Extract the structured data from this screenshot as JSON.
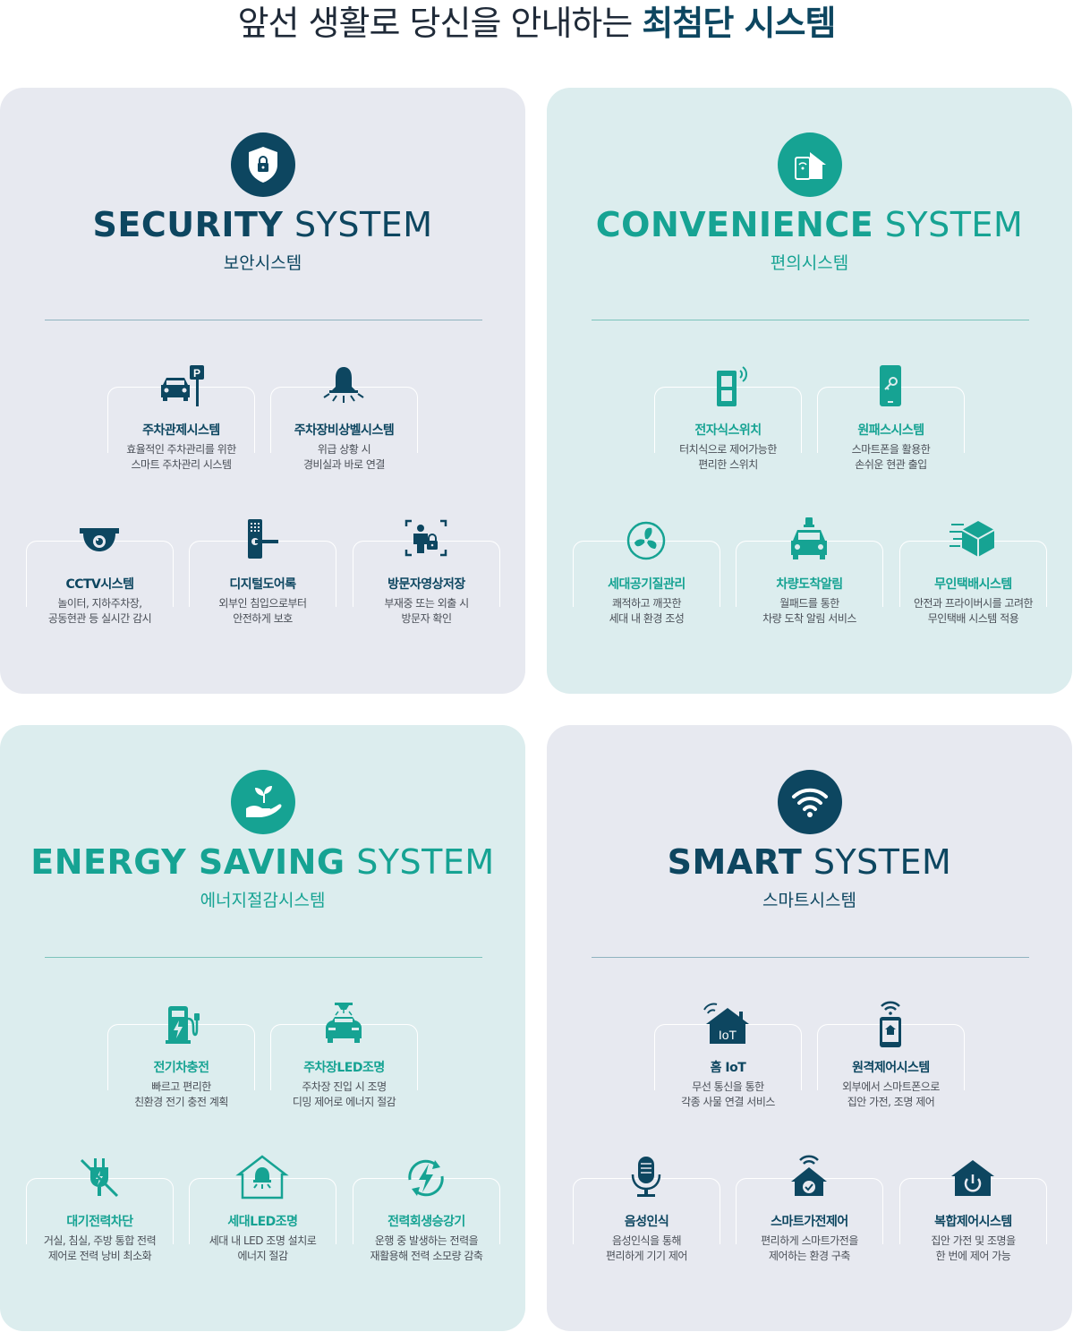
{
  "header": {
    "title_normal": "앞선 생활로 당신을 안내하는",
    "title_strong": "최첨단 시스템"
  },
  "colors": {
    "navy": "#0d4660",
    "teal": "#16a393",
    "gray_panel": "#e7e9f0",
    "mint_panel": "#dcedee"
  },
  "panels": {
    "security": {
      "icon": "shield-lock-icon",
      "title_bold": "SECURITY",
      "title_light": "SYSTEM",
      "subtitle": "보안시스템",
      "features": [
        {
          "icon": "parking-car-icon",
          "name": "주차관제시스템",
          "desc1": "효율적인 주차관리를 위한",
          "desc2": "스마트 주차관리 시스템"
        },
        {
          "icon": "alarm-bell-icon",
          "name": "주차장비상벨시스템",
          "desc1": "위급 상황 시",
          "desc2": "경비실과 바로 연결"
        },
        {
          "icon": "cctv-camera-icon",
          "name": "CCTV시스템",
          "desc1": "놀이터, 지하주차장,",
          "desc2": "공동현관 등 실시간 감시"
        },
        {
          "icon": "digital-doorlock-icon",
          "name": "디지털도어록",
          "desc1": "외부인 침입으로부터",
          "desc2": "안전하게 보호"
        },
        {
          "icon": "visitor-record-icon",
          "name": "방문자영상저장",
          "desc1": "부재중 또는 외출 시",
          "desc2": "방문자 확인"
        }
      ]
    },
    "convenience": {
      "icon": "phone-home-icon",
      "title_bold": "CONVENIENCE",
      "title_light": "SYSTEM",
      "subtitle": "편의시스템",
      "features": [
        {
          "icon": "touch-switch-icon",
          "name": "전자식스위치",
          "desc1": "터치식으로 제어가능한",
          "desc2": "편리한 스위치"
        },
        {
          "icon": "phone-key-icon",
          "name": "원패스시스템",
          "desc1": "스마트폰을 활용한",
          "desc2": "손쉬운 현관 출입"
        },
        {
          "icon": "ventilation-fan-icon",
          "name": "세대공기질관리",
          "desc1": "쾌적하고 깨끗한",
          "desc2": "세대 내 환경 조성"
        },
        {
          "icon": "car-alarm-icon",
          "name": "차량도착알림",
          "desc1": "월패드를 통한",
          "desc2": "차량 도착 알림 서비스"
        },
        {
          "icon": "delivery-box-icon",
          "name": "무인택배시스템",
          "desc1": "안전과 프라이버시를 고려한",
          "desc2": "무인택배 시스템 적용"
        }
      ]
    },
    "energy": {
      "icon": "plant-hand-icon",
      "title_bold": "ENERGY SAVING",
      "title_light": "SYSTEM",
      "subtitle": "에너지절감시스템",
      "features": [
        {
          "icon": "ev-charger-icon",
          "name": "전기차충전",
          "desc1": "빠르고 편리한",
          "desc2": "친환경 전기 충전 계획"
        },
        {
          "icon": "car-light-icon",
          "name": "주차장LED조명",
          "desc1": "주차장 진입 시 조명",
          "desc2": "디밍 제어로 에너지 절감"
        },
        {
          "icon": "plug-off-icon",
          "name": "대기전력차단",
          "desc1": "거실, 침실, 주방 통합 전력",
          "desc2": "제어로 전력 낭비 최소화"
        },
        {
          "icon": "home-lamp-icon",
          "name": "세대LED조명",
          "desc1": "세대 내 LED 조명 설치로",
          "desc2": "에너지 절감"
        },
        {
          "icon": "power-regen-icon",
          "name": "전력회생승강기",
          "desc1": "운행 중 발생하는 전력을",
          "desc2": "재활용해 전력 소모량 감축"
        }
      ]
    },
    "smart": {
      "icon": "wifi-icon",
      "title_bold": "SMART",
      "title_light": "SYSTEM",
      "subtitle": "스마트시스템",
      "features": [
        {
          "icon": "home-iot-icon",
          "name": "홈 IoT",
          "desc1": "무선 통신을 통한",
          "desc2": "각종 사물 연결 서비스",
          "badge": "IoT"
        },
        {
          "icon": "remote-phone-icon",
          "name": "원격제어시스템",
          "desc1": "외부에서 스마트폰으로",
          "desc2": "집안 가전, 조명 제어"
        },
        {
          "icon": "microphone-icon",
          "name": "음성인식",
          "desc1": "음성인식을 통해",
          "desc2": "편리하게 기기 제어"
        },
        {
          "icon": "smart-home-check-icon",
          "name": "스마트가전제어",
          "desc1": "편리하게 스마트가전을",
          "desc2": "제어하는 환경 구축"
        },
        {
          "icon": "home-power-icon",
          "name": "복합제어시스템",
          "desc1": "집안 가전 및 조명을",
          "desc2": "한 번에 제어 가능"
        }
      ]
    }
  }
}
